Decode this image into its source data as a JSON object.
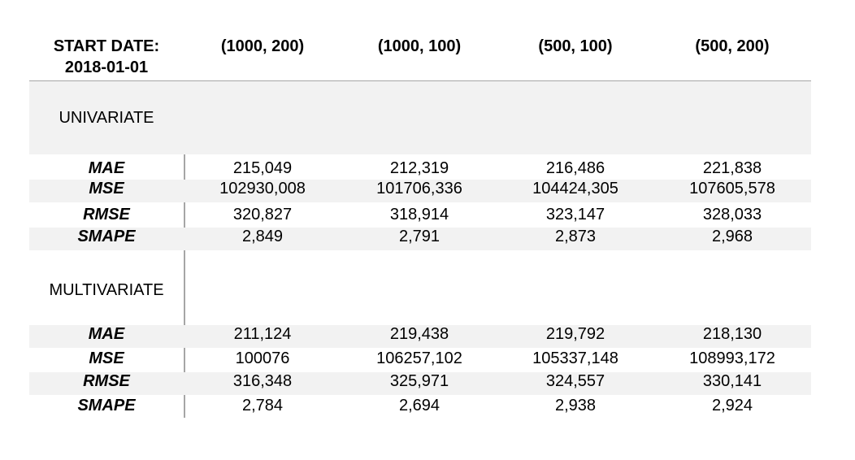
{
  "header": {
    "first": "START DATE:",
    "first_sub": "2018-01-01",
    "cols": [
      "(1000, 200)",
      "(1000, 100)",
      "(500, 100)",
      "(500, 200)"
    ]
  },
  "univariate": {
    "title": "UNIVARIATE",
    "rows": [
      {
        "metric": "MAE",
        "values": [
          "215,049",
          "212,319",
          "216,486",
          "221,838"
        ]
      },
      {
        "metric": "MSE",
        "values": [
          "102930,008",
          "101706,336",
          "104424,305",
          "107605,578"
        ]
      },
      {
        "metric": "RMSE",
        "values": [
          "320,827",
          "318,914",
          "323,147",
          "328,033"
        ]
      },
      {
        "metric": "SMAPE",
        "values": [
          "2,849",
          "2,791",
          "2,873",
          "2,968"
        ]
      }
    ]
  },
  "multivariate": {
    "title": "MULTIVARIATE",
    "rows": [
      {
        "metric": "MAE",
        "values": [
          "211,124",
          "219,438",
          "219,792",
          "218,130"
        ]
      },
      {
        "metric": "MSE",
        "values": [
          "100076",
          "106257,102",
          "105337,148",
          "108993,172"
        ]
      },
      {
        "metric": "RMSE",
        "values": [
          "316,348",
          "325,971",
          "324,557",
          "330,141"
        ]
      },
      {
        "metric": "SMAPE",
        "values": [
          "2,784",
          "2,694",
          "2,938",
          "2,924"
        ]
      }
    ]
  }
}
